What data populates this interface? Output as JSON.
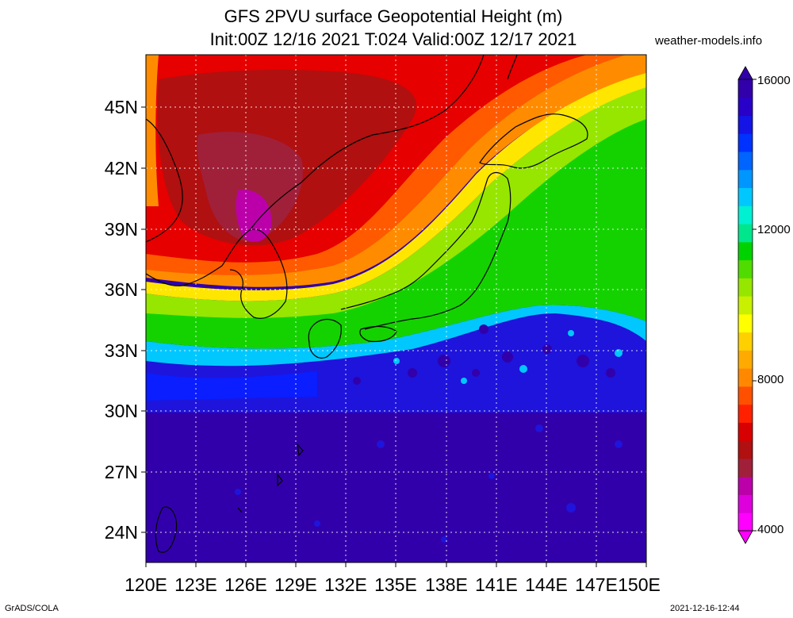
{
  "title": {
    "line1": "GFS 2PVU surface Geopotential Height (m)",
    "line2": "Init:00Z 12/16 2021 T:024 Valid:00Z 12/17 2021"
  },
  "source": "weather-models.info",
  "footer": {
    "software": "GrADS/COLA",
    "timestamp": "2021-12-16-12:44"
  },
  "map": {
    "lon_range": [
      120,
      150
    ],
    "lat_range": [
      22.5,
      47.5
    ],
    "lat_labels": [
      "45N",
      "42N",
      "39N",
      "36N",
      "33N",
      "30N",
      "27N",
      "24N"
    ],
    "lon_labels": [
      "120E",
      "123E",
      "126E",
      "129E",
      "132E",
      "135E",
      "138E",
      "141E",
      "144E",
      "147E",
      "150E"
    ],
    "gridlines": "dotted"
  },
  "colorbar": {
    "labels": [
      "16000",
      "12000",
      "8000",
      "4000"
    ],
    "colors": [
      "#ff00ff",
      "#dd00dd",
      "#bb00aa",
      "#a0203a",
      "#b01010",
      "#d80000",
      "#ff2000",
      "#ff5000",
      "#ff8800",
      "#ffaa00",
      "#ffd000",
      "#ffff00",
      "#c8f000",
      "#96e600",
      "#50dc00",
      "#00d200",
      "#00e68c",
      "#00f0d2",
      "#00c8ff",
      "#0096ff",
      "#0064ff",
      "#0032ff",
      "#1414e6",
      "#2800c8",
      "#3200aa"
    ]
  }
}
